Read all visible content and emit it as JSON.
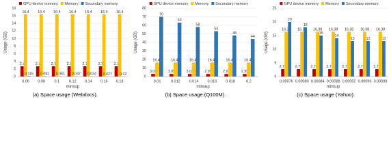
{
  "chart_data": [
    {
      "type": "bar",
      "title": "(a) Space usage (Webdocs).",
      "x_label": "minsup",
      "y_label": "Usage (GB)",
      "categories": [
        "0.06",
        "0.08",
        "0.1",
        "0.12",
        "0.14",
        "0.16",
        "0.18"
      ],
      "series": [
        {
          "name": "GPU device memory",
          "color": "#c00000",
          "values": [
            2.7,
            2.7,
            2.7,
            2.7,
            2.7,
            2.7,
            2.7
          ]
        },
        {
          "name": "Memory",
          "color": "#ffc000",
          "values": [
            16.4,
            16.4,
            16.4,
            16.4,
            16.4,
            16.4,
            16.4
          ]
        },
        {
          "name": "Secondary memory",
          "color": "#2e75b6",
          "values": [
            0.116,
            0.082,
            0.061,
            0.047,
            0.034,
            0.027,
            0.02
          ]
        }
      ],
      "ylim": [
        0,
        18
      ],
      "yticks": [
        0,
        2,
        4,
        6,
        8,
        10,
        12,
        14,
        16,
        18
      ],
      "grid": true,
      "legend": "top"
    },
    {
      "type": "bar",
      "title": "(b) Space usage (Q100M).",
      "x_label": "minsup",
      "y_label": "Usage (GB)",
      "categories": [
        "0.01",
        "0.012",
        "0.014",
        "0.016",
        "0.018",
        "0.2"
      ],
      "series": [
        {
          "name": "GPU device memory",
          "color": "#c00000",
          "values": [
            3.08,
            3.05,
            3.02,
            2.99,
            2.97,
            2.95
          ]
        },
        {
          "name": "Memory",
          "color": "#ffc000",
          "values": [
            16.45,
            16.45,
            16.45,
            16.45,
            16.45,
            16.45
          ]
        },
        {
          "name": "Secondary memory",
          "color": "#2e75b6",
          "values": [
            70,
            63,
            58,
            53,
            48,
            44
          ]
        }
      ],
      "ylim": [
        0,
        80
      ],
      "yticks": [
        0,
        10,
        20,
        30,
        40,
        50,
        60,
        70,
        80
      ],
      "grid": true,
      "legend": "top"
    },
    {
      "type": "bar",
      "title": "(c) Space usage (Yahoo).",
      "x_label": "minsup",
      "y_label": "Usage (GB)",
      "categories": [
        "0.00076",
        "0.00080",
        "0.00084",
        "0.00088",
        "0.00092",
        "0.00096",
        "0.00099"
      ],
      "series": [
        {
          "name": "GPU device memory",
          "color": "#c00000",
          "values": [
            2.74,
            2.73,
            2.73,
            2.73,
            2.73,
            2.73,
            2.73
          ]
        },
        {
          "name": "Memory",
          "color": "#ffc000",
          "values": [
            16.38,
            16.38,
            16.38,
            16.38,
            16.38,
            16.38,
            16.38
          ]
        },
        {
          "name": "Secondary memory",
          "color": "#2e75b6",
          "values": [
            20,
            18,
            15,
            14,
            13,
            13,
            13
          ]
        }
      ],
      "ylim": [
        0,
        25
      ],
      "yticks": [
        0,
        5,
        10,
        15,
        20,
        25
      ],
      "grid": true,
      "legend": "top"
    }
  ]
}
